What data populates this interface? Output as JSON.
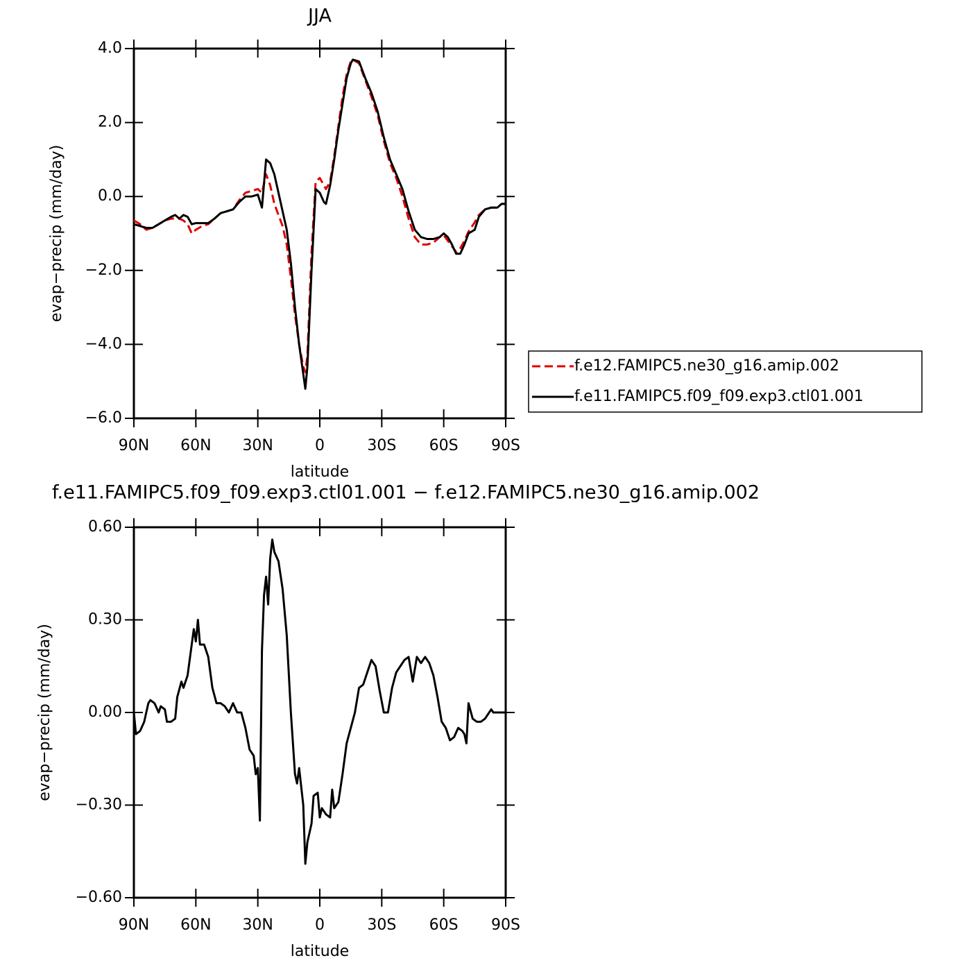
{
  "chart_data": [
    {
      "type": "line",
      "title": "JJA",
      "x_label": "latitude",
      "y_label": "evap−precip (mm/day)",
      "xlim": [
        90,
        -90
      ],
      "xticks": [
        {
          "value": 90,
          "label": "90N"
        },
        {
          "value": 60,
          "label": "60N"
        },
        {
          "value": 30,
          "label": "30N"
        },
        0,
        {
          "value": -30,
          "label": "30S"
        },
        {
          "value": -60,
          "label": "60S"
        },
        {
          "value": -90,
          "label": "90S"
        }
      ],
      "ylim": [
        -6,
        4
      ],
      "yticks": [
        {
          "value": -6,
          "label": "−6.0"
        },
        {
          "value": -4,
          "label": "−4.0"
        },
        {
          "value": -2,
          "label": "−2.0"
        },
        {
          "value": 0,
          "label": "0.0"
        },
        {
          "value": 2,
          "label": "2.0"
        },
        {
          "value": 4,
          "label": "4.0"
        }
      ],
      "legend": "right",
      "x": [
        90,
        87,
        84,
        81,
        78,
        75,
        72,
        70,
        68,
        66,
        64,
        62,
        60,
        57,
        54,
        51,
        48,
        45,
        42,
        39,
        36,
        33,
        30,
        28,
        26,
        24,
        22,
        20,
        18,
        16,
        14,
        12,
        10,
        8,
        7,
        6,
        4,
        2,
        0,
        -2,
        -3,
        -5,
        -7,
        -9,
        -11,
        -13,
        -15,
        -16,
        -19,
        -22,
        -25,
        -28,
        -31,
        -34,
        -37,
        -40,
        -43,
        -46,
        -49,
        -52,
        -55,
        -58,
        -60,
        -62,
        -64,
        -66,
        -68,
        -70,
        -72,
        -75,
        -77,
        -80,
        -83,
        -86,
        -88,
        -90
      ],
      "series": [
        {
          "name": "f.e12.FAMIPC5.ne30_g16.amip.002",
          "color": "#e00000",
          "line_style": "dashed",
          "values": [
            -0.65,
            -0.75,
            -0.9,
            -0.85,
            -0.75,
            -0.65,
            -0.6,
            -0.6,
            -0.6,
            -0.65,
            -0.75,
            -1.0,
            -0.9,
            -0.8,
            -0.75,
            -0.6,
            -0.45,
            -0.4,
            -0.35,
            -0.1,
            0.1,
            0.15,
            0.2,
            0.1,
            0.6,
            0.3,
            -0.2,
            -0.5,
            -0.8,
            -1.3,
            -2.2,
            -3.2,
            -4.0,
            -4.6,
            -4.75,
            -4.3,
            -1.5,
            0.4,
            0.5,
            0.3,
            0.2,
            0.4,
            1.1,
            1.9,
            2.7,
            3.3,
            3.65,
            3.7,
            3.6,
            3.15,
            2.7,
            2.2,
            1.5,
            0.9,
            0.5,
            0.0,
            -0.6,
            -1.1,
            -1.3,
            -1.3,
            -1.25,
            -1.1,
            -1.05,
            -1.2,
            -1.35,
            -1.5,
            -1.4,
            -1.2,
            -0.95,
            -0.7,
            -0.5,
            -0.35,
            -0.3,
            -0.3,
            -0.2,
            -0.2
          ]
        },
        {
          "name": "f.e11.FAMIPC5.f09_f09.exp3.ctl01.001",
          "color": "#000000",
          "line_style": "solid",
          "values": [
            -0.75,
            -0.8,
            -0.85,
            -0.85,
            -0.75,
            -0.65,
            -0.55,
            -0.5,
            -0.6,
            -0.5,
            -0.55,
            -0.75,
            -0.72,
            -0.72,
            -0.72,
            -0.6,
            -0.45,
            -0.4,
            -0.35,
            -0.15,
            0.0,
            0.0,
            0.05,
            -0.3,
            1.0,
            0.9,
            0.6,
            0.1,
            -0.4,
            -0.9,
            -1.8,
            -3.0,
            -4.0,
            -4.8,
            -5.2,
            -4.6,
            -2.0,
            0.2,
            0.1,
            -0.15,
            -0.2,
            0.3,
            1.0,
            1.8,
            2.5,
            3.2,
            3.6,
            3.7,
            3.65,
            3.2,
            2.8,
            2.3,
            1.6,
            1.0,
            0.6,
            0.2,
            -0.4,
            -0.9,
            -1.1,
            -1.15,
            -1.15,
            -1.1,
            -1.0,
            -1.1,
            -1.3,
            -1.55,
            -1.55,
            -1.3,
            -1.0,
            -0.9,
            -0.55,
            -0.35,
            -0.3,
            -0.3,
            -0.2,
            -0.2
          ]
        }
      ]
    },
    {
      "type": "line",
      "title": "f.e11.FAMIPC5.f09_f09.exp3.ctl01.001 − f.e12.FAMIPC5.ne30_g16.amip.002",
      "x_label": "latitude",
      "y_label": "evap−precip (mm/day)",
      "xlim": [
        90,
        -90
      ],
      "xticks": [
        {
          "value": 90,
          "label": "90N"
        },
        {
          "value": 60,
          "label": "60N"
        },
        {
          "value": 30,
          "label": "30N"
        },
        0,
        {
          "value": -30,
          "label": "30S"
        },
        {
          "value": -60,
          "label": "60S"
        },
        {
          "value": -90,
          "label": "90S"
        }
      ],
      "ylim": [
        -0.6,
        0.6
      ],
      "yticks": [
        {
          "value": -0.6,
          "label": "−0.60"
        },
        {
          "value": -0.3,
          "label": "−0.30"
        },
        {
          "value": 0,
          "label": "0.00"
        },
        {
          "value": 0.3,
          "label": "0.30"
        },
        {
          "value": 0.6,
          "label": "0.60"
        }
      ],
      "color": "#000000",
      "x": [
        90,
        89,
        87,
        85,
        83,
        82,
        80,
        78,
        77,
        75,
        74,
        72,
        70,
        69,
        67,
        66,
        64,
        63,
        61,
        60,
        59,
        58,
        56,
        54,
        52,
        50,
        48,
        46,
        44,
        42,
        40,
        38,
        36,
        34,
        32,
        31,
        30,
        29,
        28,
        27,
        26,
        25,
        24,
        23,
        22,
        20,
        18,
        16,
        14,
        12,
        11,
        10,
        8,
        7,
        6,
        4,
        3,
        1,
        0,
        -1,
        -3,
        -5,
        -6,
        -7,
        -9,
        -11,
        -13,
        -15,
        -17,
        -19,
        -21,
        -23,
        -25,
        -27,
        -29,
        -31,
        -33,
        -35,
        -37,
        -39,
        -41,
        -43,
        -45,
        -47,
        -49,
        -51,
        -53,
        -55,
        -57,
        -59,
        -61,
        -63,
        -65,
        -67,
        -69,
        -70,
        -71,
        -72,
        -74,
        -76,
        -78,
        -80,
        -82,
        -83,
        -84,
        -86,
        -88,
        -90
      ],
      "values": [
        0.0,
        -0.07,
        -0.06,
        -0.03,
        0.03,
        0.04,
        0.03,
        0.0,
        0.02,
        0.01,
        -0.03,
        -0.03,
        -0.02,
        0.05,
        0.1,
        0.08,
        0.12,
        0.17,
        0.27,
        0.23,
        0.3,
        0.22,
        0.22,
        0.18,
        0.08,
        0.03,
        0.03,
        0.02,
        0.0,
        0.03,
        0.0,
        0.0,
        -0.05,
        -0.12,
        -0.14,
        -0.2,
        -0.18,
        -0.35,
        0.2,
        0.38,
        0.44,
        0.35,
        0.5,
        0.56,
        0.52,
        0.49,
        0.4,
        0.25,
        0.0,
        -0.2,
        -0.23,
        -0.18,
        -0.3,
        -0.49,
        -0.42,
        -0.36,
        -0.27,
        -0.26,
        -0.34,
        -0.31,
        -0.33,
        -0.34,
        -0.25,
        -0.31,
        -0.29,
        -0.2,
        -0.1,
        -0.05,
        0.0,
        0.08,
        0.09,
        0.13,
        0.17,
        0.15,
        0.07,
        0.0,
        0.0,
        0.08,
        0.13,
        0.15,
        0.17,
        0.18,
        0.1,
        0.18,
        0.16,
        0.18,
        0.16,
        0.12,
        0.05,
        -0.03,
        -0.05,
        -0.09,
        -0.08,
        -0.05,
        -0.06,
        -0.07,
        -0.1,
        0.03,
        -0.02,
        -0.03,
        -0.03,
        -0.02,
        0.0,
        0.01,
        0.0,
        0.0,
        0.0,
        0.0
      ]
    }
  ]
}
